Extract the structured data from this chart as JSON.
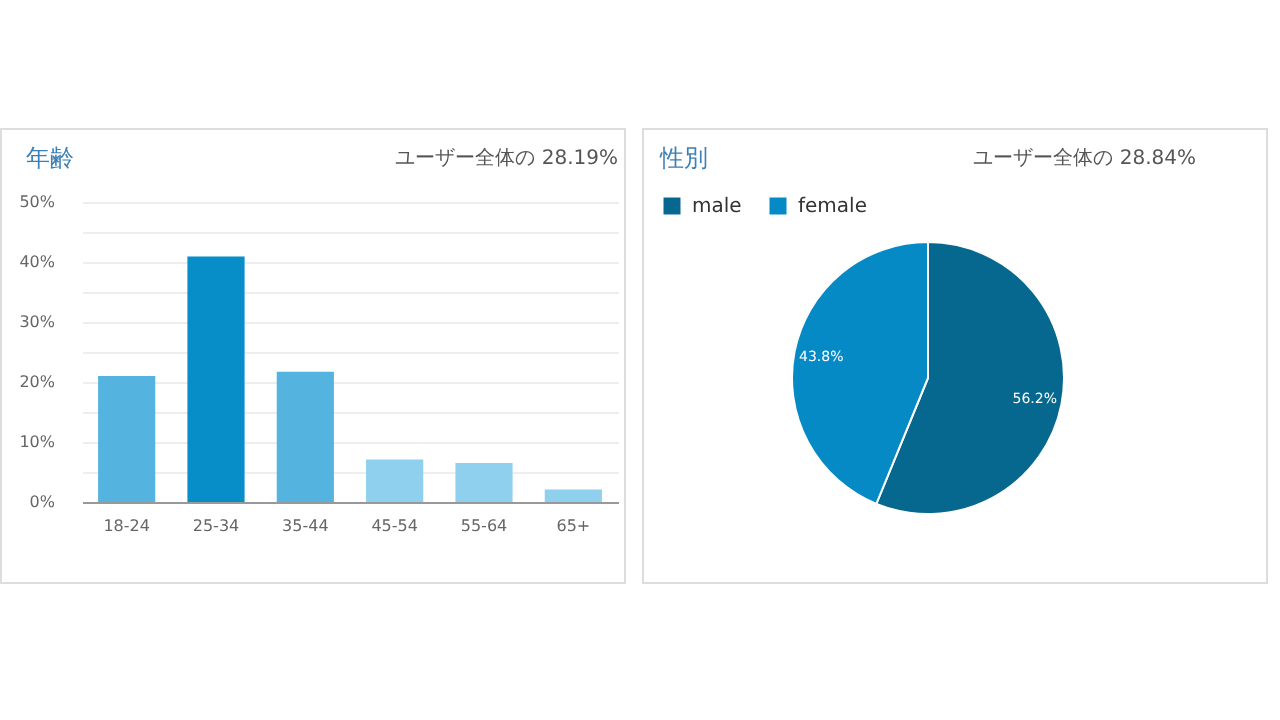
{
  "chart_data": [
    {
      "type": "bar",
      "title": "年齢",
      "annotations": [
        "ユーザー全体の 28.19%"
      ],
      "categories": [
        "18-24",
        "25-34",
        "35-44",
        "45-54",
        "55-64",
        "65+"
      ],
      "values": [
        21,
        40.9,
        21.7,
        7.1,
        6.5,
        2.1
      ],
      "colors": [
        "#55b3df",
        "#078dc8",
        "#55b3df",
        "#8ed0ed",
        "#8ed0ed",
        "#8ed0ed"
      ],
      "ylim": [
        0,
        50
      ],
      "yticks": [
        {
          "value": 0,
          "label": "0%"
        },
        {
          "value": 5,
          "label": null
        },
        {
          "value": 10,
          "label": "10%"
        },
        {
          "value": 15,
          "label": null
        },
        {
          "value": 20,
          "label": "20%"
        },
        {
          "value": 25,
          "label": null
        },
        {
          "value": 30,
          "label": "30%"
        },
        {
          "value": 35,
          "label": null
        },
        {
          "value": 40,
          "label": "40%"
        },
        {
          "value": 45,
          "label": null
        },
        {
          "value": 50,
          "label": "50%"
        }
      ],
      "grid": "y"
    },
    {
      "type": "pie",
      "title": "性別",
      "annotations": [
        "ユーザー全体の 28.84%"
      ],
      "categories": [
        "male",
        "female"
      ],
      "values": [
        56.2,
        43.8
      ],
      "colors": [
        "#06688f",
        "#058ac6"
      ],
      "value_labels": [
        "56.2%",
        "43.8%"
      ],
      "legend": "top"
    }
  ]
}
